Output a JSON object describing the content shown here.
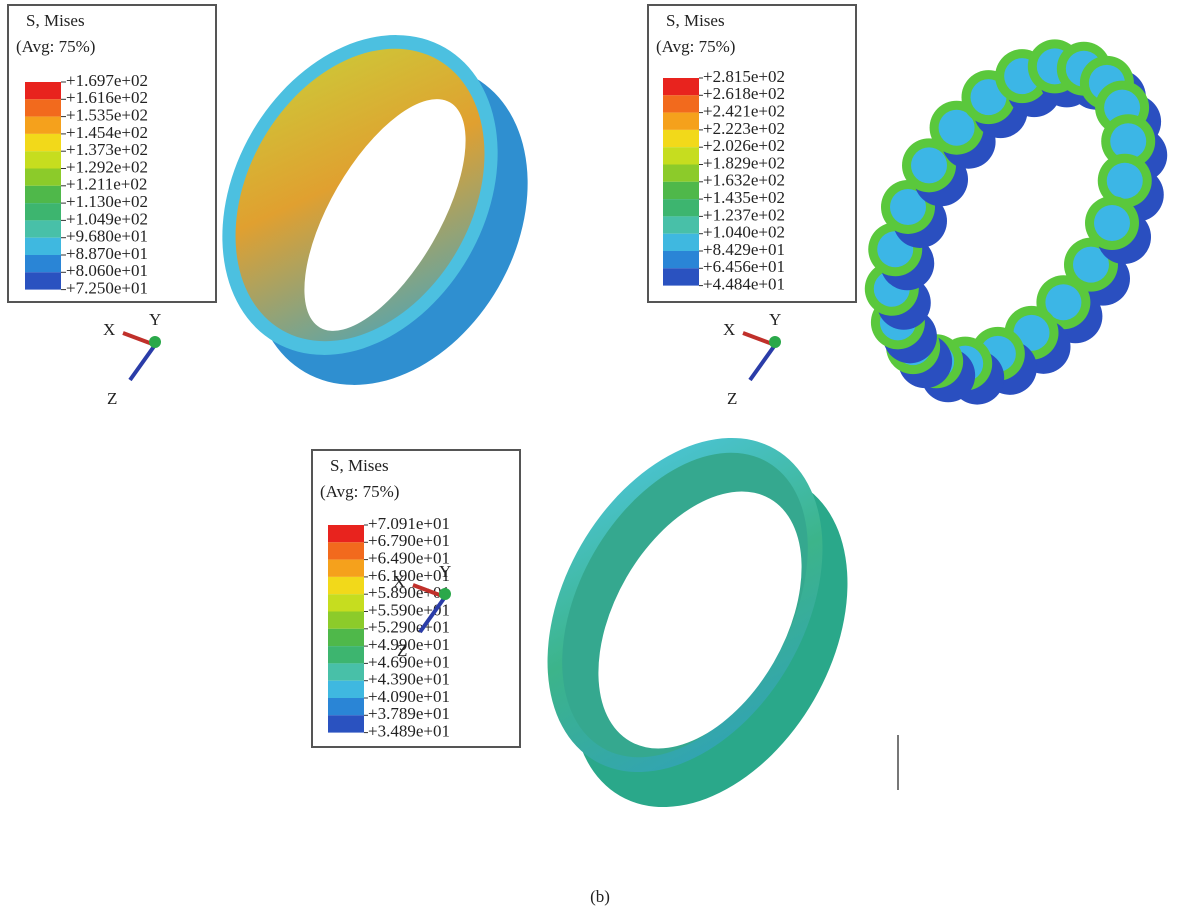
{
  "panels": [
    {
      "legend": {
        "title": "S, Mises",
        "subtitle": "(Avg: 75%)",
        "labels": [
          "+1.697e+02",
          "+1.616e+02",
          "+1.535e+02",
          "+1.454e+02",
          "+1.373e+02",
          "+1.292e+02",
          "+1.211e+02",
          "+1.130e+02",
          "+1.049e+02",
          "+9.680e+01",
          "+8.870e+01",
          "+8.060e+01",
          "+7.250e+01"
        ]
      },
      "axes": {
        "x": "X",
        "y": "Y",
        "z": "Z"
      }
    },
    {
      "legend": {
        "title": "S, Mises",
        "subtitle": "(Avg: 75%)",
        "labels": [
          "+2.815e+02",
          "+2.618e+02",
          "+2.421e+02",
          "+2.223e+02",
          "+2.026e+02",
          "+1.829e+02",
          "+1.632e+02",
          "+1.435e+02",
          "+1.237e+02",
          "+1.040e+02",
          "+8.429e+01",
          "+6.456e+01",
          "+4.484e+01"
        ]
      },
      "axes": {
        "x": "X",
        "y": "Y",
        "z": "Z"
      }
    },
    {
      "legend": {
        "title": "S, Mises",
        "subtitle": "(Avg: 75%)",
        "labels": [
          "+7.091e+01",
          "+6.790e+01",
          "+6.490e+01",
          "+6.190e+01",
          "+5.890e+01",
          "+5.590e+01",
          "+5.290e+01",
          "+4.990e+01",
          "+4.690e+01",
          "+4.390e+01",
          "+4.090e+01",
          "+3.789e+01",
          "+3.489e+01"
        ]
      },
      "axes": {
        "x": "X",
        "y": "Y",
        "z": "Z"
      }
    }
  ],
  "caption": "(b)"
}
